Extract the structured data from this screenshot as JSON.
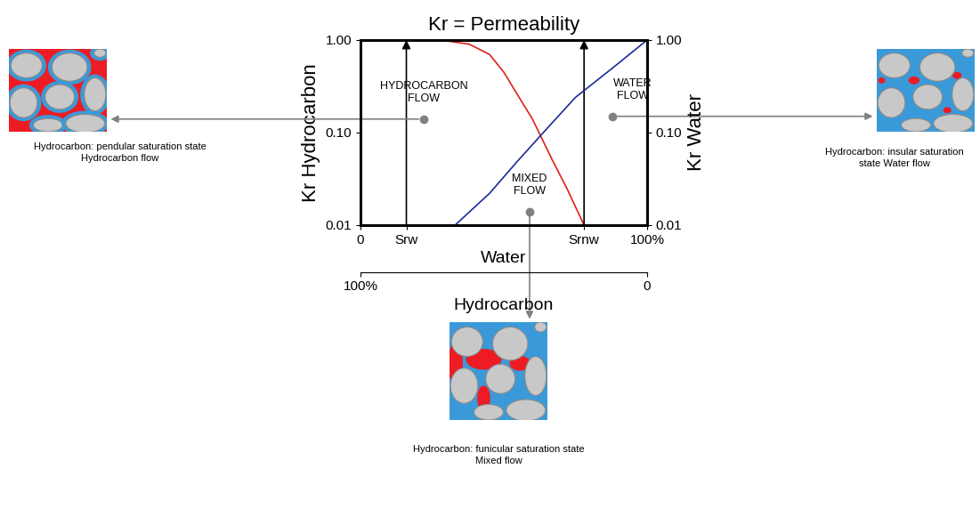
{
  "chart_data": {
    "type": "line",
    "title": "Kr = Permeability",
    "x_label": "Water",
    "y_label": "Kr Hydrocarbon",
    "y2_label": "Kr Water",
    "xlim": [
      0,
      100
    ],
    "xticks": [
      0,
      {
        "value": 16,
        "label": "Srw"
      },
      {
        "value": 78,
        "label": "Srnw"
      },
      {
        "value": 100,
        "label": "100%"
      }
    ],
    "secondary_x": {
      "label": "Hydrocarbon",
      "xlim": [
        100,
        0
      ],
      "xticks": [
        {
          "value": 100,
          "label": "100%"
        },
        0
      ]
    },
    "log": "y",
    "ylim": [
      0.01,
      1
    ],
    "yticks": [
      0.01,
      {
        "value": 0.1,
        "label": "0.10"
      },
      {
        "value": 1,
        "label": "1.00"
      }
    ],
    "y2lim": [
      0.01,
      1
    ],
    "y2ticks": [
      0.01,
      {
        "value": 0.1,
        "label": "0.10"
      },
      {
        "value": 1,
        "label": "1.00"
      }
    ],
    "series": [
      {
        "color": "#e0201c",
        "x": [
          0,
          10,
          20,
          30,
          38,
          45,
          50,
          55,
          60,
          67,
          72,
          78
        ],
        "values": [
          1.0,
          1.0,
          1.0,
          0.98,
          0.9,
          0.7,
          0.45,
          0.25,
          0.14,
          0.05,
          0.025,
          0.01
        ]
      },
      {
        "color": "#1a2a9a",
        "axis": "y2",
        "x": [
          33,
          45,
          55,
          65,
          75,
          88,
          100
        ],
        "values": [
          0.01,
          0.022,
          0.05,
          0.11,
          0.24,
          0.5,
          1.0
        ]
      }
    ],
    "annotations": [
      {
        "text": [
          "HYDROCARBON",
          "FLOW"
        ],
        "x": 22,
        "y": 0.14,
        "caption": [
          "Hydrocarbon: pendular saturation state",
          "Hydrocarbon flow"
        ]
      },
      {
        "text": [
          "WATER",
          "FLOW"
        ],
        "x": 88,
        "y": 0.15,
        "caption": [
          "Hydrocarbon: insular saturation",
          "state Water flow"
        ]
      },
      {
        "text": [
          "MIXED",
          "FLOW"
        ],
        "x": 59,
        "y": 0.014,
        "caption": [
          "Hydrocarbon: funicular saturation state",
          "Mixed flow"
        ]
      }
    ]
  }
}
